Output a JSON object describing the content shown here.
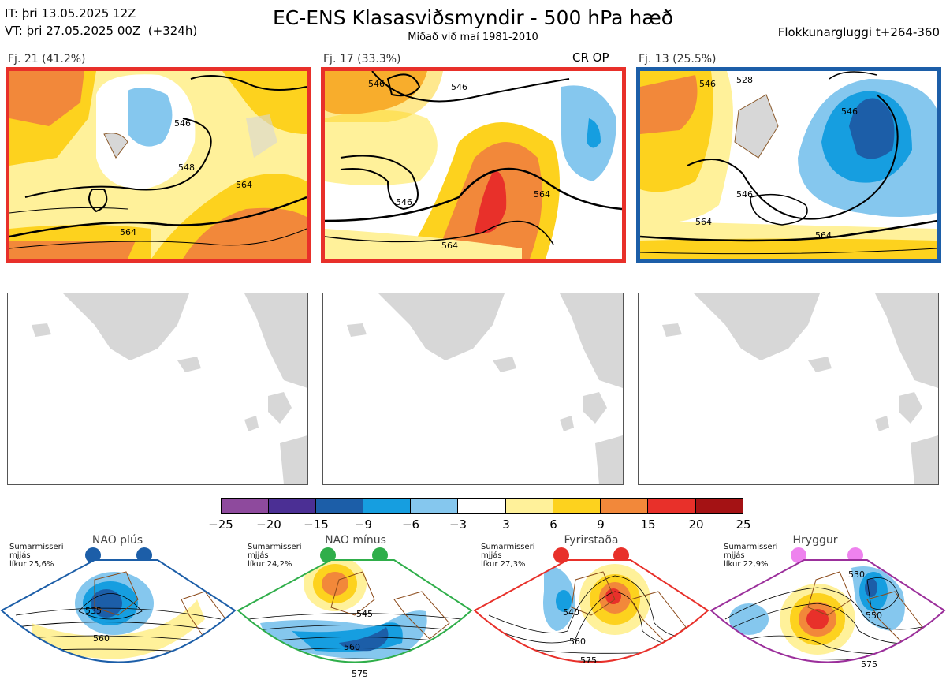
{
  "header": {
    "it_line": "IT: þri 13.05.2025 12Z",
    "vt_line": "VT: þri 27.05.2025 00Z  (+324h)",
    "title": "EC-ENS Klasasviðsmyndir - 500 hPa hæð",
    "subtitle": "Miðað við maí 1981-2010",
    "window": "Flokkunargluggi t+264-360"
  },
  "clusters": [
    {
      "label": "Fj. 21 (41.2%)",
      "border_color": "#e8302a",
      "contours": [
        "546",
        "548",
        "564",
        "564"
      ]
    },
    {
      "label": "Fj. 17 (33.3%)",
      "border_color": "#e8302a",
      "op_marker": "CR OP",
      "contours": [
        "546",
        "546",
        "546",
        "564",
        "564"
      ]
    },
    {
      "label": "Fj. 13 (25.5%)",
      "border_color": "#1c5ea8",
      "contours": [
        "528",
        "546",
        "546",
        "564",
        "546",
        "564"
      ]
    }
  ],
  "colorbar": {
    "ticks": [
      "−25",
      "−20",
      "−15",
      "−9",
      "−6",
      "−3",
      "3",
      "6",
      "9",
      "15",
      "20",
      "25"
    ],
    "colors": [
      "#8e4a9d",
      "#4b2f94",
      "#1c5ea8",
      "#169ee0",
      "#85c7ee",
      "#ffffff",
      "#fff19a",
      "#fdd21e",
      "#f2883a",
      "#e8302a",
      "#a41214"
    ]
  },
  "regimes": [
    {
      "name": "NAO plús",
      "season": "Sumarmisseri",
      "smoothing": "mjjás",
      "probability": "líkur 25,6%",
      "color": "#1c5ea8",
      "contour_labels": [
        "535",
        "560"
      ]
    },
    {
      "name": "NAO mínus",
      "season": "Sumarmisseri",
      "smoothing": "mjjás",
      "probability": "líkur 24,2%",
      "color": "#2fae4a",
      "contour_labels": [
        "545",
        "560",
        "575"
      ]
    },
    {
      "name": "Fyrirstaða",
      "season": "Sumarmisseri",
      "smoothing": "mjjás",
      "probability": "líkur 27,3%",
      "color": "#e8302a",
      "contour_labels": [
        "540",
        "560",
        "575"
      ]
    },
    {
      "name": "Hryggur",
      "season": "Sumarmisseri",
      "smoothing": "mjjás",
      "probability": "líkur 22,9%",
      "color": "#9b2f9b",
      "dot_color": "#ee82ee",
      "contour_labels": [
        "530",
        "550",
        "575"
      ]
    }
  ]
}
